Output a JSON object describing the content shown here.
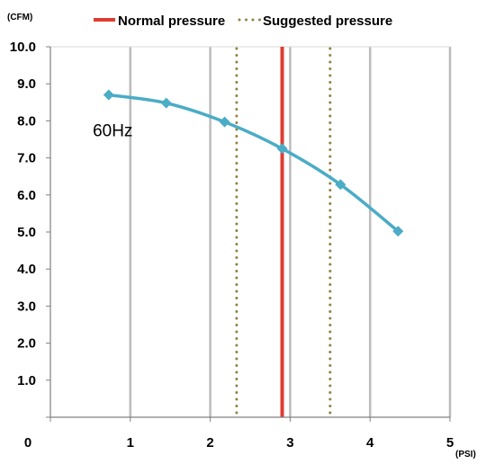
{
  "chart_data": {
    "type": "line",
    "ylabel": "(CFM)",
    "xlabel": "(PSI)",
    "xlim": [
      0,
      5
    ],
    "ylim": [
      0,
      10
    ],
    "x_ticks": [
      "0",
      "1",
      "2",
      "3",
      "4",
      "5"
    ],
    "y_ticks": [
      "1.0",
      "2.0",
      "3.0",
      "4.0",
      "5.0",
      "6.0",
      "7.0",
      "8.0",
      "9.0",
      "10.0"
    ],
    "grid": "vertical",
    "legend_placement": "top",
    "legend": [
      {
        "label": "Normal pressure",
        "color": "#e03c31",
        "style": "solid"
      },
      {
        "label": "Suggested pressure",
        "color": "#8f8242",
        "style": "dotted"
      }
    ],
    "reference_lines": [
      {
        "x": 2.9,
        "kind": "Normal pressure"
      },
      {
        "x": 2.33,
        "kind": "Suggested pressure"
      },
      {
        "x": 3.5,
        "kind": "Suggested pressure"
      }
    ],
    "series": [
      {
        "color": "#4bacc6",
        "marker": "diamond",
        "x": [
          0.73,
          1.45,
          2.18,
          2.9,
          3.63,
          4.35
        ],
        "y": [
          8.7,
          8.48,
          7.97,
          7.25,
          6.28,
          5.02
        ]
      }
    ],
    "annotations": [
      {
        "text": "60Hz",
        "x": 0.78,
        "y": 7.75
      }
    ]
  }
}
